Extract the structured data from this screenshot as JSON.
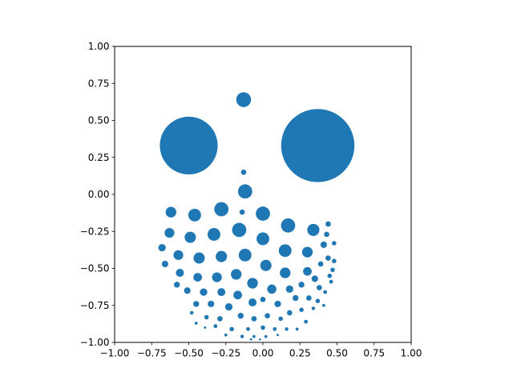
{
  "chart_data": {
    "type": "scatter",
    "title": "",
    "xlabel": "",
    "ylabel": "",
    "xlim": [
      -1.0,
      1.0
    ],
    "ylim": [
      -1.0,
      1.0
    ],
    "aspect": "equal",
    "grid": false,
    "x_ticks": [
      "−1.00",
      "−0.75",
      "−0.50",
      "−0.25",
      "0.00",
      "0.25",
      "0.50",
      "0.75",
      "1.00"
    ],
    "y_ticks": [
      "−1.00",
      "−0.75",
      "−0.50",
      "−0.25",
      "0.00",
      "0.25",
      "0.50",
      "0.75",
      "1.00"
    ],
    "marker_color": "#1f77b4",
    "circles": [
      {
        "x": 0.37,
        "y": 0.33,
        "r": 0.247
      },
      {
        "x": -0.5,
        "y": 0.33,
        "r": 0.195
      },
      {
        "x": -0.13,
        "y": 0.64,
        "r": 0.05
      },
      {
        "x": -0.13,
        "y": 0.15,
        "r": 0.018
      },
      {
        "x": -0.12,
        "y": 0.02,
        "r": 0.048
      },
      {
        "x": -0.62,
        "y": -0.12,
        "r": 0.036
      },
      {
        "x": -0.46,
        "y": -0.14,
        "r": 0.043
      },
      {
        "x": -0.28,
        "y": -0.1,
        "r": 0.048
      },
      {
        "x": -0.14,
        "y": -0.12,
        "r": 0.018
      },
      {
        "x": 0.0,
        "y": -0.13,
        "r": 0.048
      },
      {
        "x": 0.17,
        "y": -0.21,
        "r": 0.048
      },
      {
        "x": 0.34,
        "y": -0.24,
        "r": 0.041
      },
      {
        "x": 0.44,
        "y": -0.2,
        "r": 0.018
      },
      {
        "x": -0.63,
        "y": -0.26,
        "r": 0.033
      },
      {
        "x": -0.49,
        "y": -0.29,
        "r": 0.038
      },
      {
        "x": -0.33,
        "y": -0.27,
        "r": 0.043
      },
      {
        "x": -0.16,
        "y": -0.24,
        "r": 0.048
      },
      {
        "x": 0.0,
        "y": -0.3,
        "r": 0.043
      },
      {
        "x": 0.43,
        "y": -0.27,
        "r": 0.018
      },
      {
        "x": -0.68,
        "y": -0.36,
        "r": 0.025
      },
      {
        "x": -0.57,
        "y": -0.41,
        "r": 0.033
      },
      {
        "x": -0.43,
        "y": -0.43,
        "r": 0.038
      },
      {
        "x": -0.28,
        "y": -0.42,
        "r": 0.038
      },
      {
        "x": -0.12,
        "y": -0.41,
        "r": 0.043
      },
      {
        "x": 0.15,
        "y": -0.38,
        "r": 0.043
      },
      {
        "x": 0.3,
        "y": -0.39,
        "r": 0.036
      },
      {
        "x": 0.41,
        "y": -0.34,
        "r": 0.022
      },
      {
        "x": 0.48,
        "y": -0.33,
        "r": 0.015
      },
      {
        "x": 0.44,
        "y": -0.43,
        "r": 0.018
      },
      {
        "x": -0.66,
        "y": -0.47,
        "r": 0.022
      },
      {
        "x": 0.02,
        "y": -0.48,
        "r": 0.038
      },
      {
        "x": 0.39,
        "y": -0.47,
        "r": 0.018
      },
      {
        "x": 0.48,
        "y": -0.45,
        "r": 0.015
      },
      {
        "x": -0.56,
        "y": -0.53,
        "r": 0.027
      },
      {
        "x": -0.44,
        "y": -0.56,
        "r": 0.029
      },
      {
        "x": -0.31,
        "y": -0.56,
        "r": 0.033
      },
      {
        "x": -0.18,
        "y": -0.54,
        "r": 0.036
      },
      {
        "x": 0.15,
        "y": -0.53,
        "r": 0.036
      },
      {
        "x": 0.3,
        "y": -0.52,
        "r": 0.029
      },
      {
        "x": 0.47,
        "y": -0.51,
        "r": 0.015
      },
      {
        "x": -0.58,
        "y": -0.61,
        "r": 0.02
      },
      {
        "x": -0.07,
        "y": -0.6,
        "r": 0.036
      },
      {
        "x": 0.35,
        "y": -0.57,
        "r": 0.022
      },
      {
        "x": 0.45,
        "y": -0.55,
        "r": 0.015
      },
      {
        "x": -0.51,
        "y": -0.65,
        "r": 0.022
      },
      {
        "x": -0.4,
        "y": -0.66,
        "r": 0.025
      },
      {
        "x": -0.28,
        "y": -0.66,
        "r": 0.027
      },
      {
        "x": -0.17,
        "y": -0.68,
        "r": 0.029
      },
      {
        "x": 0.06,
        "y": -0.64,
        "r": 0.031
      },
      {
        "x": 0.18,
        "y": -0.64,
        "r": 0.025
      },
      {
        "x": 0.26,
        "y": -0.61,
        "r": 0.02
      },
      {
        "x": 0.38,
        "y": -0.63,
        "r": 0.018
      },
      {
        "x": 0.46,
        "y": -0.59,
        "r": 0.013
      },
      {
        "x": -0.45,
        "y": -0.74,
        "r": 0.02
      },
      {
        "x": -0.35,
        "y": -0.74,
        "r": 0.022
      },
      {
        "x": -0.23,
        "y": -0.76,
        "r": 0.025
      },
      {
        "x": -0.07,
        "y": -0.73,
        "r": 0.027
      },
      {
        "x": 0.0,
        "y": -0.71,
        "r": 0.018
      },
      {
        "x": 0.1,
        "y": -0.74,
        "r": 0.022
      },
      {
        "x": 0.22,
        "y": -0.7,
        "r": 0.02
      },
      {
        "x": 0.31,
        "y": -0.7,
        "r": 0.018
      },
      {
        "x": 0.42,
        "y": -0.66,
        "r": 0.013
      },
      {
        "x": 0.37,
        "y": -0.72,
        "r": 0.015
      },
      {
        "x": -0.48,
        "y": -0.8,
        "r": 0.012
      },
      {
        "x": -0.38,
        "y": -0.83,
        "r": 0.015
      },
      {
        "x": -0.29,
        "y": -0.84,
        "r": 0.018
      },
      {
        "x": -0.15,
        "y": -0.82,
        "r": 0.02
      },
      {
        "x": -0.06,
        "y": -0.84,
        "r": 0.018
      },
      {
        "x": 0.03,
        "y": -0.82,
        "r": 0.018
      },
      {
        "x": 0.12,
        "y": -0.84,
        "r": 0.015
      },
      {
        "x": 0.18,
        "y": -0.8,
        "r": 0.018
      },
      {
        "x": 0.26,
        "y": -0.78,
        "r": 0.015
      },
      {
        "x": 0.34,
        "y": -0.77,
        "r": 0.012
      },
      {
        "x": 0.41,
        "y": -0.75,
        "r": 0.01
      },
      {
        "x": 0.29,
        "y": -0.86,
        "r": 0.013
      },
      {
        "x": -0.45,
        "y": -0.87,
        "r": 0.01
      },
      {
        "x": -0.32,
        "y": -0.89,
        "r": 0.013
      },
      {
        "x": -0.21,
        "y": -0.91,
        "r": 0.015
      },
      {
        "x": -0.1,
        "y": -0.91,
        "r": 0.013
      },
      {
        "x": 0.0,
        "y": -0.9,
        "r": 0.015
      },
      {
        "x": 0.08,
        "y": -0.91,
        "r": 0.013
      },
      {
        "x": 0.16,
        "y": -0.91,
        "r": 0.012
      },
      {
        "x": 0.23,
        "y": -0.91,
        "r": 0.01
      },
      {
        "x": -0.39,
        "y": -0.9,
        "r": 0.008
      },
      {
        "x": -0.25,
        "y": -0.95,
        "r": 0.01
      },
      {
        "x": -0.14,
        "y": -0.96,
        "r": 0.012
      },
      {
        "x": -0.06,
        "y": -0.96,
        "r": 0.01
      },
      {
        "x": 0.02,
        "y": -0.96,
        "r": 0.01
      },
      {
        "x": 0.1,
        "y": -0.95,
        "r": 0.008
      },
      {
        "x": -0.08,
        "y": -0.98,
        "r": 0.008
      },
      {
        "x": -0.02,
        "y": -0.98,
        "r": 0.007
      }
    ]
  }
}
